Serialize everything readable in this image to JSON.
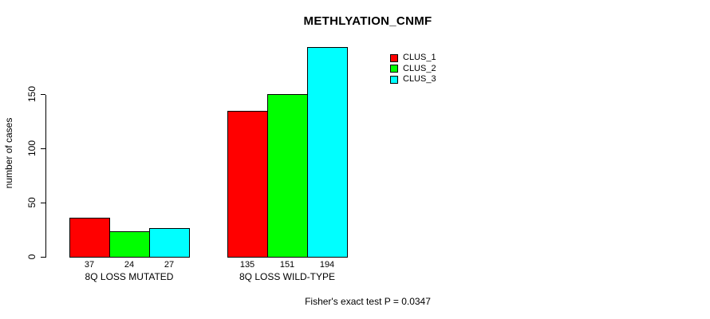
{
  "chart_data": {
    "type": "bar",
    "title": "METHLYATION_CNMF",
    "ylabel": "number of cases",
    "xlabel": "",
    "categories": [
      "8Q LOSS MUTATED",
      "8Q LOSS WILD-TYPE"
    ],
    "series": [
      {
        "name": "CLUS_1",
        "color": "#ff0000",
        "values": [
          37,
          135
        ]
      },
      {
        "name": "CLUS_2",
        "color": "#00ff00",
        "values": [
          24,
          151
        ]
      },
      {
        "name": "CLUS_3",
        "color": "#00ffff",
        "values": [
          27,
          194
        ]
      }
    ],
    "yticks": [
      0,
      50,
      100,
      150
    ],
    "ylim": [
      0,
      203
    ],
    "grid": false,
    "bar_borders": "#000000",
    "bar_value_labels": true,
    "legend_position": "top-right",
    "annotation": "Fisher's exact test P = 0.0347"
  }
}
